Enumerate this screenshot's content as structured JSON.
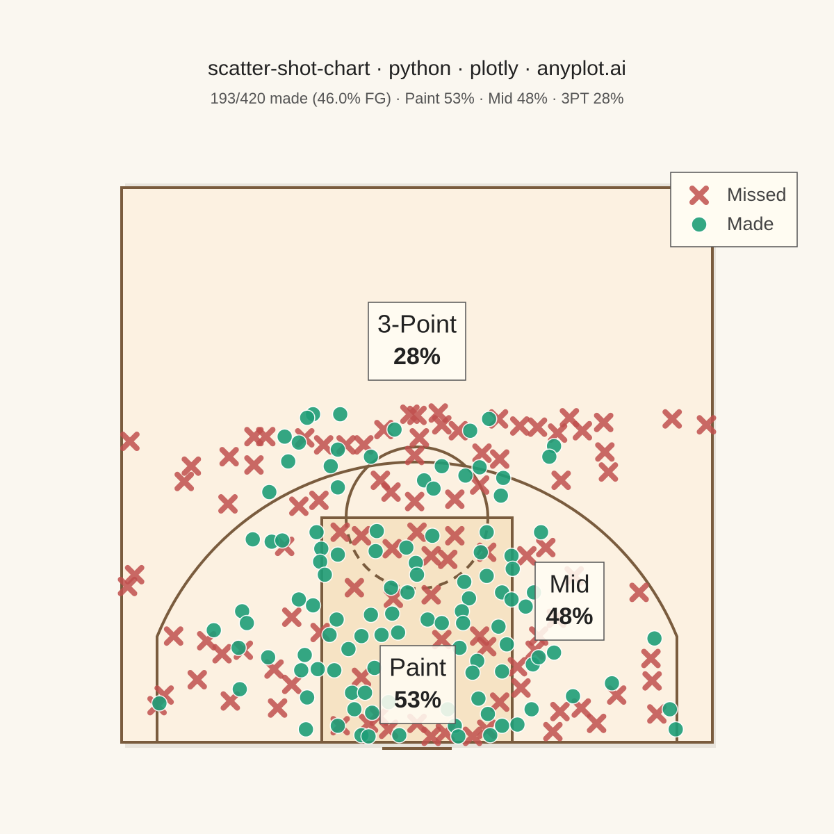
{
  "chart_data": {
    "type": "scatter",
    "title": "scatter-shot-chart · python · plotly · anyplot.ai",
    "subtitle": "193/420 made (46.0% FG) · Paint 53% · Mid 48% · 3PT 28%",
    "xlim": [
      -25,
      25
    ],
    "ylim": [
      0,
      47
    ],
    "legend_position": "top-right",
    "series": [
      {
        "name": "Missed",
        "color": "#c0504d",
        "marker": "x",
        "x": [
          -24.3,
          -13.8,
          -12.8,
          -15.9,
          -13.8,
          -19.1,
          -19.7,
          -16,
          -10,
          -8.3,
          -9.5,
          -7.9,
          -6,
          -4.5,
          -2.8,
          -0.6,
          0,
          1.8,
          2.1,
          3.5,
          6.9,
          8.7,
          10.2,
          11.9,
          12.9,
          14,
          15.8,
          15.9,
          16.2,
          21.6,
          24.5,
          12.2,
          7,
          5.5,
          -0.2,
          -0.2,
          3.2,
          -3.1,
          -2.2,
          5.3,
          0.2,
          -6.5,
          -4.7,
          0,
          3.2,
          5.9,
          -11.2,
          10.9,
          9.3,
          2.6,
          1.2,
          -2.1,
          -5.3,
          -2,
          1.2,
          -10.6,
          -8.2,
          -23.9,
          -24.5,
          -20.6,
          -17.8,
          -16.5,
          -14.7,
          -18.6,
          -21.4,
          -22,
          -15.8,
          -11.8,
          -12.1,
          -10.6,
          18.8,
          13.3,
          11.8,
          10,
          10.3,
          19.8,
          19.9,
          16.9,
          15.2,
          13.9,
          12.1,
          11.5,
          20.3,
          8.8,
          8.5,
          7,
          5.9,
          5.3,
          2.1,
          0,
          -2.4,
          -4.1,
          2.4,
          4.7,
          -3.2,
          -4.7,
          -6.5,
          5.9,
          1.2
        ],
        "y": [
          25.5,
          25.9,
          25.9,
          24.2,
          23.5,
          23.4,
          22.1,
          20.2,
          20,
          20.5,
          25.8,
          25.2,
          25.2,
          25.2,
          26.5,
          27.8,
          27.7,
          27.9,
          26.9,
          26.4,
          27.4,
          26.8,
          26.7,
          26.2,
          27.5,
          26.4,
          27.1,
          24.6,
          22.9,
          27.4,
          26.9,
          22.2,
          24,
          24.5,
          24.3,
          20.4,
          20.6,
          22.2,
          21.2,
          21.8,
          25.8,
          17.8,
          17.5,
          17.8,
          17.5,
          16.1,
          16.6,
          16.5,
          15.8,
          15.5,
          15.8,
          16.4,
          13.1,
          12.2,
          12.5,
          10.6,
          9.3,
          14.2,
          13.2,
          9,
          8.6,
          7.5,
          7.8,
          5.3,
          4,
          3.1,
          3.5,
          2.9,
          6.2,
          4.9,
          12.7,
          14.1,
          10.5,
          7.8,
          9,
          7.1,
          5.2,
          4,
          1.6,
          2.9,
          2.6,
          0.9,
          2.4,
          4.6,
          6.4,
          3.4,
          8.1,
          9,
          8.7,
          1.6,
          1.1,
          1.6,
          0.8,
          0.5,
          2.2,
          5.5,
          1.4,
          1.1,
          0.5
        ]
      },
      {
        "name": "Made",
        "color": "#1f9e78",
        "marker": "circle",
        "x": [
          -8.8,
          -9.3,
          -6.5,
          -11.2,
          -10,
          -10.9,
          -6.7,
          -7.3,
          -3.9,
          -1.9,
          4.5,
          6.1,
          11.6,
          11.2,
          -12.5,
          -6.7,
          0.6,
          1.4,
          2.1,
          4.1,
          5.3,
          7.3,
          7.1,
          -13.9,
          -12.3,
          -11.4,
          -8.5,
          -8.1,
          -8.2,
          -7.8,
          -6.7,
          -3.4,
          -3.5,
          -0.9,
          1.3,
          5.9,
          5.4,
          -0.1,
          0,
          -2.2,
          -0.8,
          4,
          5.9,
          4.4,
          10.5,
          8,
          8.1,
          7.2,
          8,
          9.2,
          9.9,
          -10,
          -8.8,
          -14.8,
          -14.4,
          -17.2,
          -15.1,
          -12.6,
          -9.5,
          -9.8,
          -8.4,
          -7,
          -6.8,
          -7.4,
          -3.9,
          -2.1,
          0.9,
          2.1,
          3.8,
          3.9,
          -5.8,
          -4.7,
          -3,
          -1.6,
          3.6,
          5.1,
          6.9,
          7.6,
          7.2,
          9.8,
          10.3,
          11.6,
          20.1,
          16.5,
          13.2,
          9.7,
          8.5,
          6,
          5.2,
          7.2,
          21.4,
          21.9,
          -15,
          -21.8,
          -9.3,
          -9.4,
          -6.7,
          -5.5,
          -5.3,
          -4.7,
          -4.1,
          -1.5,
          3.2,
          3.5,
          6.2,
          -3.8,
          -4.4,
          -3.6,
          -2.4,
          2.6,
          4.7
        ],
        "y": [
          27.8,
          27.5,
          27.8,
          25.9,
          25.4,
          23.8,
          24.8,
          23.4,
          24.2,
          26.5,
          26.4,
          27.4,
          25.1,
          24.2,
          21.2,
          21.6,
          22.2,
          21.5,
          23.4,
          22.6,
          23.3,
          22.4,
          20.9,
          17.2,
          17,
          17.1,
          17.8,
          16.4,
          15.3,
          14.2,
          15.9,
          17.9,
          16.2,
          16.5,
          17.5,
          17.8,
          16.1,
          15.2,
          14.2,
          13.1,
          12.7,
          13.6,
          14.1,
          12.2,
          17.8,
          15.8,
          14.7,
          12.7,
          12.1,
          11.5,
          12.7,
          12.1,
          11.6,
          11.1,
          10.1,
          9.5,
          8,
          7.2,
          7.4,
          6.1,
          6.2,
          6.1,
          10.4,
          9.1,
          10.8,
          10.9,
          10.4,
          10.1,
          11.1,
          10.1,
          7.9,
          9,
          9.1,
          9.3,
          8,
          6.9,
          9.8,
          8.3,
          6,
          6.6,
          7.2,
          7.6,
          8.8,
          5,
          3.9,
          2.8,
          1.5,
          2.4,
          3.7,
          1.4,
          2.8,
          1.1,
          4.5,
          3.3,
          3.8,
          1.1,
          1.4,
          4.2,
          2.8,
          0.6,
          0.5,
          0.6,
          1.4,
          0.5,
          0.6,
          2.5,
          4.2,
          6.3,
          3.4,
          2.8,
          5.9
        ]
      }
    ],
    "annotations": [
      {
        "label": "3-Point",
        "pct": "28%"
      },
      {
        "label": "Mid",
        "pct": "48%"
      },
      {
        "label": "Paint",
        "pct": "53%"
      }
    ]
  }
}
